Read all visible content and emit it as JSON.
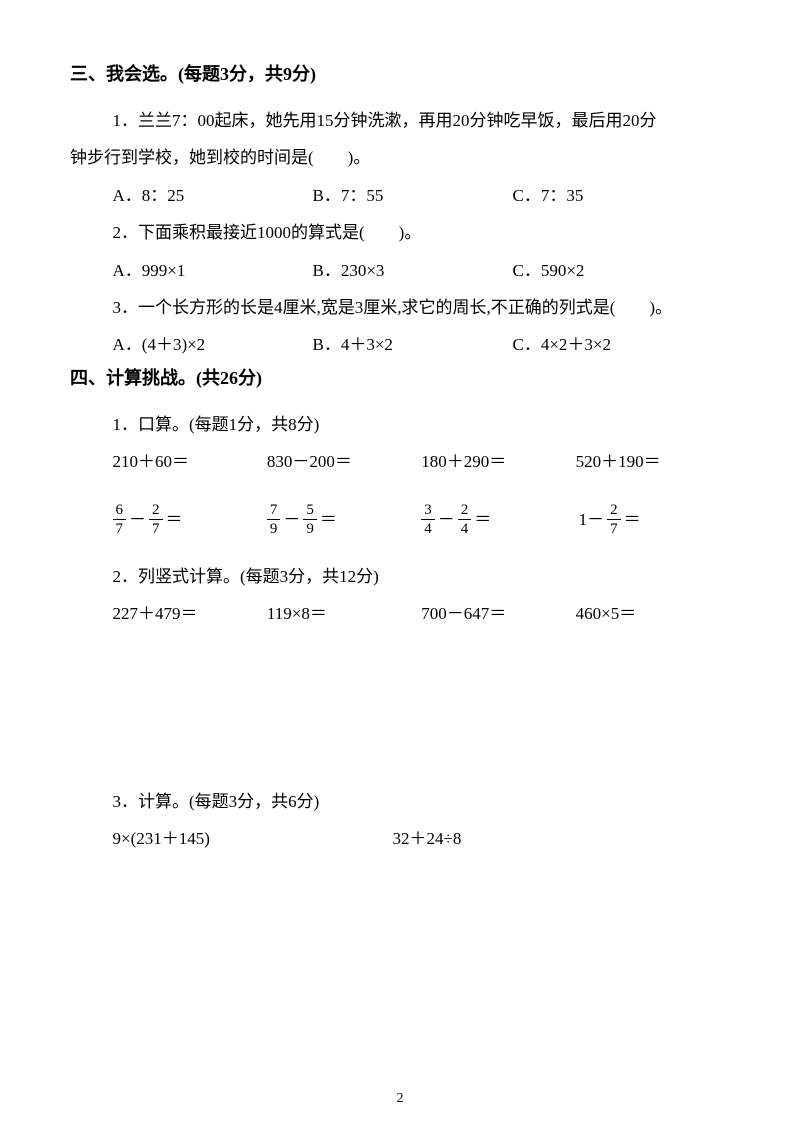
{
  "section3": {
    "header": "三、我会选。(每题3分，共9分)",
    "q1": {
      "text_line1": "1．兰兰7：00起床，她先用15分钟洗漱，再用20分钟吃早饭，最后用20分",
      "text_line2": "钟步行到学校，她到校的时间是(　　)。",
      "optA": "A．8：25",
      "optB": "B．7：55",
      "optC": "C．7：35"
    },
    "q2": {
      "text": "2．下面乘积最接近1000的算式是(　　)。",
      "optA": "A．999×1",
      "optB": "B．230×3",
      "optC": "C．590×2"
    },
    "q3": {
      "text": "3．一个长方形的长是4厘米,宽是3厘米,求它的周长,不正确的列式是(　　)。",
      "optA": "A．(4＋3)×2",
      "optB": "B．4＋3×2",
      "optC": "C．4×2＋3×2"
    }
  },
  "section4": {
    "header": "四、计算挑战。(共26分)",
    "sub1": {
      "title": "1．口算。(每题1分，共8分)",
      "row1": {
        "c1": "210＋60＝",
        "c2": "830－200＝",
        "c3": "180＋290＝",
        "c4": "520＋190＝"
      },
      "row2": {
        "f1n1": "6",
        "f1d1": "7",
        "f1n2": "2",
        "f1d2": "7",
        "f2n1": "7",
        "f2d1": "9",
        "f2n2": "5",
        "f2d2": "9",
        "f3n1": "3",
        "f3d1": "4",
        "f3n2": "2",
        "f3d2": "4",
        "f4n1": "2",
        "f4d1": "7",
        "op_minus": "－",
        "op_eq": "＝",
        "one_minus": "1－"
      }
    },
    "sub2": {
      "title": "2．列竖式计算。(每题3分，共12分)",
      "row1": {
        "c1": "227＋479＝",
        "c2": "119×8＝",
        "c3": "700－647＝",
        "c4": "460×5＝"
      }
    },
    "sub3": {
      "title": "3．计算。(每题3分，共6分)",
      "row1": {
        "c1": "9×(231＋145)",
        "c2": "32＋24÷8"
      }
    }
  },
  "pageNumber": "2"
}
